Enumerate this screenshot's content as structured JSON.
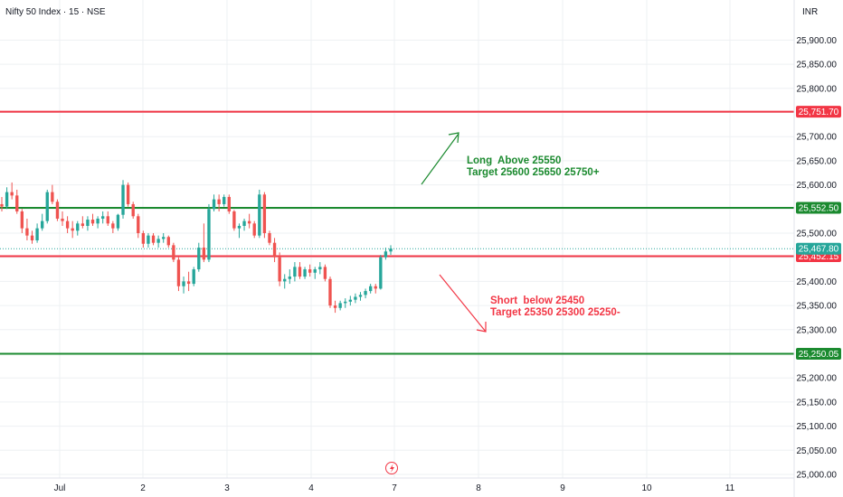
{
  "header": {
    "symbol": "Nifty 50 Index · 15 · NSE",
    "currency": "INR"
  },
  "colors": {
    "up": "#26a69a",
    "down": "#ef5350",
    "resistance": "#f23645",
    "support": "#1b8a2f",
    "long_text": "#1b8a2f",
    "short_text": "#f23645",
    "grid": "#eef0f3",
    "axis_text": "#131722",
    "last_price": "#26a69a"
  },
  "chart_data": {
    "type": "candlestick",
    "y_axis": {
      "min": 25000,
      "max": 25950,
      "step": 50,
      "ticks": [
        "25,000.00",
        "25,050.00",
        "25,100.00",
        "25,150.00",
        "25,200.00",
        "25,250.00",
        "25,300.00",
        "25,350.00",
        "25,400.00",
        "25,450.00",
        "25,500.00",
        "25,550.00",
        "25,600.00",
        "25,650.00",
        "25,700.00",
        "25,750.00",
        "25,800.00",
        "25,850.00",
        "25,900.00"
      ]
    },
    "x_axis": {
      "labels": [
        {
          "label": "Jul",
          "x": 0
        },
        {
          "label": "2",
          "x": 1
        },
        {
          "label": "3",
          "x": 2
        },
        {
          "label": "4",
          "x": 3
        },
        {
          "label": "7",
          "x": 4
        },
        {
          "label": "8",
          "x": 5
        },
        {
          "label": "9",
          "x": 6
        },
        {
          "label": "10",
          "x": 7
        },
        {
          "label": "11",
          "x": 8
        }
      ]
    },
    "candles": [
      [
        25560,
        25575,
        25545,
        25555
      ],
      [
        25555,
        25595,
        25550,
        25585
      ],
      [
        25585,
        25605,
        25570,
        25578
      ],
      [
        25578,
        25590,
        25540,
        25545
      ],
      [
        25545,
        25550,
        25500,
        25510
      ],
      [
        25510,
        25530,
        25485,
        25495
      ],
      [
        25495,
        25505,
        25478,
        25485
      ],
      [
        25485,
        25520,
        25480,
        25510
      ],
      [
        25510,
        25540,
        25505,
        25525
      ],
      [
        25525,
        25590,
        25520,
        25585
      ],
      [
        25585,
        25600,
        25560,
        25565
      ],
      [
        25565,
        25570,
        25525,
        25530
      ],
      [
        25530,
        25545,
        25515,
        25525
      ],
      [
        25525,
        25535,
        25500,
        25510
      ],
      [
        25510,
        25525,
        25490,
        25505
      ],
      [
        25505,
        25525,
        25495,
        25520
      ],
      [
        25520,
        25535,
        25510,
        25515
      ],
      [
        25515,
        25535,
        25505,
        25528
      ],
      [
        25528,
        25540,
        25515,
        25520
      ],
      [
        25520,
        25535,
        25510,
        25530
      ],
      [
        25530,
        25545,
        25520,
        25535
      ],
      [
        25535,
        25545,
        25515,
        25520
      ],
      [
        25520,
        25525,
        25500,
        25510
      ],
      [
        25510,
        25540,
        25505,
        25538
      ],
      [
        25538,
        25610,
        25530,
        25600
      ],
      [
        25600,
        25605,
        25555,
        25560
      ],
      [
        25560,
        25565,
        25530,
        25535
      ],
      [
        25535,
        25540,
        25490,
        25500
      ],
      [
        25500,
        25505,
        25470,
        25478
      ],
      [
        25478,
        25500,
        25470,
        25495
      ],
      [
        25495,
        25500,
        25475,
        25480
      ],
      [
        25480,
        25495,
        25470,
        25488
      ],
      [
        25488,
        25500,
        25480,
        25492
      ],
      [
        25492,
        25495,
        25470,
        25475
      ],
      [
        25475,
        25480,
        25440,
        25445
      ],
      [
        25445,
        25450,
        25380,
        25390
      ],
      [
        25390,
        25410,
        25375,
        25400
      ],
      [
        25400,
        25420,
        25380,
        25395
      ],
      [
        25395,
        25430,
        25390,
        25425
      ],
      [
        25425,
        25480,
        25420,
        25470
      ],
      [
        25470,
        25520,
        25440,
        25445
      ],
      [
        25445,
        25560,
        25440,
        25550
      ],
      [
        25550,
        25580,
        25545,
        25570
      ],
      [
        25570,
        25580,
        25545,
        25560
      ],
      [
        25560,
        25580,
        25555,
        25575
      ],
      [
        25575,
        25580,
        25540,
        25545
      ],
      [
        25545,
        25548,
        25505,
        25510
      ],
      [
        25510,
        25520,
        25490,
        25515
      ],
      [
        25515,
        25530,
        25505,
        25525
      ],
      [
        25525,
        25540,
        25510,
        25520
      ],
      [
        25520,
        25525,
        25490,
        25495
      ],
      [
        25495,
        25590,
        25490,
        25580
      ],
      [
        25580,
        25585,
        25490,
        25500
      ],
      [
        25500,
        25505,
        25475,
        25480
      ],
      [
        25480,
        25490,
        25440,
        25450
      ],
      [
        25450,
        25460,
        25390,
        25400
      ],
      [
        25400,
        25415,
        25385,
        25405
      ],
      [
        25405,
        25425,
        25395,
        25410
      ],
      [
        25410,
        25440,
        25400,
        25430
      ],
      [
        25430,
        25440,
        25405,
        25410
      ],
      [
        25410,
        25430,
        25405,
        25425
      ],
      [
        25425,
        25435,
        25410,
        25418
      ],
      [
        25418,
        25430,
        25405,
        25425
      ],
      [
        25425,
        25440,
        25415,
        25430
      ],
      [
        25430,
        25435,
        25400,
        25405
      ],
      [
        25405,
        25410,
        25345,
        25350
      ],
      [
        25350,
        25360,
        25335,
        25345
      ],
      [
        25345,
        25360,
        25340,
        25355
      ],
      [
        25355,
        25365,
        25345,
        25358
      ],
      [
        25358,
        25370,
        25350,
        25362
      ],
      [
        25362,
        25375,
        25355,
        25368
      ],
      [
        25368,
        25378,
        25360,
        25372
      ],
      [
        25372,
        25385,
        25365,
        25380
      ],
      [
        25380,
        25395,
        25375,
        25390
      ],
      [
        25390,
        25395,
        25375,
        25385
      ],
      [
        25385,
        25455,
        25383,
        25450
      ],
      [
        25450,
        25470,
        25445,
        25462
      ],
      [
        25462,
        25475,
        25455,
        25468
      ]
    ],
    "levels": [
      {
        "price": 25751.7,
        "label": "25,751.70",
        "kind": "resistance"
      },
      {
        "price": 25552.5,
        "label": "25,552.50",
        "kind": "support"
      },
      {
        "price": 25452.15,
        "label": "25,452.15",
        "kind": "resistance"
      },
      {
        "price": 25250.05,
        "label": "25,250.05",
        "kind": "support"
      }
    ],
    "last_price": {
      "price": 25467.8,
      "label": "25,467.80"
    },
    "annotations": {
      "long": {
        "line1": "Long  Above 25550",
        "line2": "Target 25600 25650 25750+"
      },
      "short": {
        "line1": "Short  below 25450",
        "line2": "Target 25350 25300 25250-"
      }
    }
  }
}
